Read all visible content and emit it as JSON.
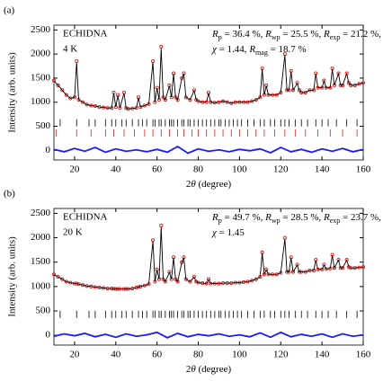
{
  "chart_data": [
    {
      "type": "line",
      "panel_label": "(a)",
      "labels": [
        "ECHIDNA",
        "4 K"
      ],
      "annotation": [
        [
          {
            "text": "R",
            "style": "italic"
          },
          {
            "text": "p",
            "style": "sub"
          },
          {
            "text": " = 36.4 %, "
          },
          {
            "text": "R",
            "style": "italic"
          },
          {
            "text": "wp",
            "style": "sub"
          },
          {
            "text": " = 25.5 %, "
          },
          {
            "text": "R",
            "style": "italic"
          },
          {
            "text": "exp",
            "style": "sub"
          },
          {
            "text": " = 21.2 %,"
          }
        ],
        [
          {
            "text": "χ",
            "style": "italic"
          },
          {
            "text": " = 1.44, "
          },
          {
            "text": "R",
            "style": "italic"
          },
          {
            "text": "mag",
            "style": "sub"
          },
          {
            "text": " = 18.7 %"
          }
        ]
      ],
      "y_label": "Intensity (arb. units)",
      "x_label": [
        {
          "text": "2"
        },
        {
          "text": "θ",
          "style": "italic"
        },
        {
          "text": " (degree)"
        }
      ],
      "xlim": [
        10,
        160
      ],
      "ylim": [
        -200,
        2600
      ],
      "xticks": [
        20,
        40,
        60,
        80,
        100,
        120,
        140,
        160
      ],
      "yticks": [
        0,
        500,
        1000,
        1500,
        2000,
        2500
      ],
      "x": [
        10,
        12,
        14,
        16,
        18,
        20,
        21,
        22,
        24,
        26,
        28,
        30,
        32,
        34,
        36,
        38,
        39,
        40,
        41,
        42,
        44,
        45,
        46,
        48,
        50,
        51,
        52,
        54,
        56,
        58,
        59,
        60,
        61,
        62,
        63,
        64,
        66,
        67,
        68,
        69,
        70,
        72,
        73,
        74,
        76,
        78,
        79,
        80,
        82,
        84,
        85,
        86,
        88,
        90,
        92,
        94,
        96,
        98,
        100,
        102,
        104,
        106,
        108,
        110,
        111,
        112,
        113,
        114,
        116,
        118,
        120,
        122,
        123,
        124,
        125,
        126,
        128,
        129,
        130,
        132,
        134,
        136,
        137,
        138,
        140,
        141,
        142,
        144,
        145,
        146,
        148,
        149,
        150,
        152,
        153,
        154,
        156,
        158,
        160
      ],
      "series": [
        {
          "style": "points",
          "color": "#d42020",
          "values": [
            1450,
            1350,
            1250,
            1150,
            1080,
            1100,
            1850,
            1050,
            1000,
            950,
            930,
            920,
            900,
            890,
            880,
            880,
            1200,
            900,
            1150,
            880,
            1200,
            880,
            860,
            870,
            880,
            1100,
            900,
            930,
            960,
            1850,
            1000,
            1300,
            1050,
            2150,
            1100,
            1050,
            1350,
            1100,
            1600,
            1100,
            1050,
            1500,
            1600,
            1100,
            1050,
            1250,
            1050,
            1020,
            1000,
            1000,
            1200,
            1000,
            990,
            1000,
            1020,
            1000,
            980,
            1000,
            1000,
            1000,
            1000,
            1020,
            1050,
            1100,
            1700,
            1150,
            1350,
            1150,
            1150,
            1150,
            1200,
            2000,
            1250,
            1250,
            1650,
            1250,
            1400,
            1250,
            1200,
            1200,
            1250,
            1250,
            1600,
            1300,
            1300,
            1450,
            1300,
            1300,
            1700,
            1350,
            1600,
            1350,
            1350,
            1600,
            1400,
            1350,
            1350,
            1380,
            1400
          ]
        },
        {
          "style": "line",
          "color": "#000000",
          "values": [
            1440,
            1350,
            1250,
            1150,
            1080,
            1100,
            1820,
            1050,
            1000,
            950,
            930,
            920,
            900,
            890,
            880,
            880,
            1190,
            900,
            1140,
            880,
            1190,
            880,
            860,
            870,
            880,
            1090,
            900,
            930,
            960,
            1830,
            1000,
            1290,
            1050,
            2120,
            1100,
            1050,
            1340,
            1100,
            1590,
            1100,
            1050,
            1490,
            1590,
            1100,
            1050,
            1240,
            1050,
            1020,
            1000,
            1000,
            1190,
            1000,
            990,
            1000,
            1020,
            1000,
            980,
            1000,
            1000,
            1000,
            1000,
            1020,
            1050,
            1100,
            1690,
            1150,
            1340,
            1150,
            1150,
            1150,
            1200,
            1980,
            1250,
            1250,
            1640,
            1250,
            1390,
            1250,
            1200,
            1200,
            1250,
            1250,
            1590,
            1300,
            1300,
            1440,
            1300,
            1300,
            1690,
            1350,
            1590,
            1350,
            1350,
            1590,
            1400,
            1350,
            1350,
            1380,
            1400
          ]
        }
      ],
      "difference": {
        "color": "#1a1aff",
        "x": [
          10,
          15,
          20,
          25,
          30,
          35,
          40,
          45,
          50,
          55,
          60,
          65,
          70,
          75,
          80,
          85,
          90,
          95,
          100,
          105,
          110,
          115,
          120,
          125,
          130,
          135,
          140,
          145,
          150,
          155,
          160
        ],
        "values": [
          20,
          -30,
          40,
          -20,
          60,
          -40,
          30,
          -20,
          10,
          -30,
          20,
          -40,
          80,
          -60,
          30,
          -20,
          10,
          -30,
          20,
          -10,
          30,
          -50,
          60,
          -30,
          20,
          -40,
          30,
          -20,
          40,
          -30,
          20
        ]
      },
      "reflection_rows": [
        {
          "y": 570,
          "color": "#000000",
          "positions": [
            13,
            21,
            27,
            30,
            35,
            38,
            40,
            43,
            45,
            48,
            51,
            53,
            55,
            58,
            59,
            61,
            62,
            64,
            66,
            67,
            68,
            70,
            72,
            73,
            75,
            76,
            78,
            80,
            82,
            84,
            86,
            88,
            90,
            91,
            93,
            95,
            97,
            99,
            101,
            104,
            107,
            110,
            112,
            115,
            117,
            120,
            122,
            124,
            127,
            130,
            133,
            137,
            140,
            143,
            147,
            152,
            157
          ]
        },
        {
          "y": 360,
          "color": "#d42020",
          "positions": [
            11,
            21,
            28,
            35,
            39,
            44,
            49,
            54,
            58,
            62,
            66,
            70,
            73,
            77,
            80,
            84,
            88,
            92,
            96,
            100,
            104,
            108,
            112,
            117,
            122,
            127,
            132,
            138,
            144,
            150,
            157
          ]
        }
      ]
    },
    {
      "type": "line",
      "panel_label": "(b)",
      "labels": [
        "ECHIDNA",
        "20 K"
      ],
      "annotation": [
        [
          {
            "text": "R",
            "style": "italic"
          },
          {
            "text": "p",
            "style": "sub"
          },
          {
            "text": " = 49.7 %, "
          },
          {
            "text": "R",
            "style": "italic"
          },
          {
            "text": "wp",
            "style": "sub"
          },
          {
            "text": " = 28.5 %, "
          },
          {
            "text": "R",
            "style": "italic"
          },
          {
            "text": "exp",
            "style": "sub"
          },
          {
            "text": " = 23.7 %,"
          }
        ],
        [
          {
            "text": "χ",
            "style": "italic"
          },
          {
            "text": " = 1.45"
          }
        ]
      ],
      "y_label": "Intensity (arb. units)",
      "x_label": [
        {
          "text": "2"
        },
        {
          "text": "θ",
          "style": "italic"
        },
        {
          "text": " (degree)"
        }
      ],
      "xlim": [
        10,
        160
      ],
      "ylim": [
        -200,
        2600
      ],
      "xticks": [
        20,
        40,
        60,
        80,
        100,
        120,
        140,
        160
      ],
      "yticks": [
        0,
        500,
        1000,
        1500,
        2000,
        2500
      ],
      "x": [
        10,
        12,
        14,
        16,
        18,
        20,
        21,
        22,
        24,
        26,
        28,
        30,
        32,
        34,
        36,
        38,
        39,
        40,
        41,
        42,
        44,
        45,
        46,
        48,
        50,
        51,
        52,
        54,
        56,
        58,
        59,
        60,
        61,
        62,
        63,
        64,
        66,
        67,
        68,
        69,
        70,
        72,
        73,
        74,
        76,
        78,
        79,
        80,
        82,
        84,
        85,
        86,
        88,
        90,
        92,
        94,
        96,
        98,
        100,
        102,
        104,
        106,
        108,
        110,
        111,
        112,
        113,
        114,
        116,
        118,
        120,
        122,
        123,
        124,
        125,
        126,
        128,
        129,
        130,
        132,
        134,
        136,
        137,
        138,
        140,
        141,
        142,
        144,
        145,
        146,
        148,
        149,
        150,
        152,
        153,
        154,
        156,
        158,
        160
      ],
      "series": [
        {
          "style": "points",
          "color": "#d42020",
          "values": [
            1250,
            1200,
            1150,
            1100,
            1080,
            1060,
            1060,
            1050,
            1030,
            1010,
            1000,
            990,
            980,
            970,
            960,
            960,
            955,
            950,
            950,
            950,
            950,
            950,
            950,
            960,
            980,
            990,
            1000,
            1020,
            1050,
            1950,
            1100,
            1350,
            1150,
            2250,
            1150,
            1100,
            1300,
            1150,
            1600,
            1150,
            1100,
            1500,
            1600,
            1150,
            1100,
            1200,
            1100,
            1080,
            1070,
            1060,
            1150,
            1060,
            1060,
            1060,
            1070,
            1070,
            1070,
            1080,
            1080,
            1090,
            1100,
            1120,
            1150,
            1200,
            1700,
            1250,
            1350,
            1250,
            1250,
            1250,
            1280,
            2000,
            1300,
            1300,
            1600,
            1300,
            1450,
            1300,
            1300,
            1300,
            1330,
            1330,
            1550,
            1350,
            1350,
            1450,
            1360,
            1370,
            1650,
            1380,
            1550,
            1380,
            1380,
            1550,
            1400,
            1380,
            1380,
            1390,
            1400
          ]
        },
        {
          "style": "line",
          "color": "#000000",
          "values": [
            1240,
            1200,
            1150,
            1100,
            1080,
            1060,
            1060,
            1050,
            1030,
            1010,
            1000,
            990,
            980,
            970,
            960,
            960,
            955,
            950,
            950,
            950,
            950,
            950,
            950,
            960,
            980,
            990,
            1000,
            1020,
            1050,
            1930,
            1100,
            1340,
            1150,
            2220,
            1150,
            1100,
            1290,
            1150,
            1590,
            1150,
            1100,
            1490,
            1590,
            1150,
            1100,
            1190,
            1100,
            1080,
            1070,
            1060,
            1140,
            1060,
            1060,
            1060,
            1070,
            1070,
            1070,
            1080,
            1080,
            1090,
            1100,
            1120,
            1150,
            1200,
            1690,
            1250,
            1340,
            1250,
            1250,
            1250,
            1280,
            1980,
            1300,
            1300,
            1590,
            1300,
            1440,
            1300,
            1300,
            1300,
            1330,
            1330,
            1540,
            1350,
            1350,
            1440,
            1360,
            1370,
            1640,
            1380,
            1540,
            1380,
            1380,
            1540,
            1400,
            1380,
            1380,
            1390,
            1400
          ]
        }
      ],
      "difference": {
        "color": "#1a1aff",
        "x": [
          10,
          15,
          20,
          25,
          30,
          35,
          40,
          45,
          50,
          55,
          60,
          65,
          70,
          75,
          80,
          85,
          90,
          95,
          100,
          105,
          110,
          115,
          120,
          125,
          130,
          135,
          140,
          145,
          150,
          155,
          160
        ],
        "values": [
          -20,
          30,
          -10,
          40,
          -30,
          20,
          -40,
          30,
          -20,
          10,
          60,
          -50,
          40,
          -30,
          20,
          -10,
          30,
          -20,
          10,
          -30,
          50,
          -40,
          60,
          -30,
          20,
          -20,
          30,
          -40,
          30,
          -20,
          10
        ]
      },
      "reflection_rows": [
        {
          "y": 430,
          "color": "#000000",
          "positions": [
            13,
            21,
            27,
            30,
            35,
            38,
            40,
            43,
            45,
            48,
            51,
            53,
            55,
            58,
            59,
            61,
            62,
            64,
            66,
            67,
            68,
            70,
            72,
            73,
            75,
            76,
            78,
            80,
            82,
            84,
            86,
            88,
            90,
            91,
            93,
            95,
            97,
            99,
            101,
            104,
            107,
            110,
            112,
            115,
            117,
            120,
            122,
            124,
            127,
            130,
            133,
            137,
            140,
            143,
            147,
            152,
            157
          ]
        }
      ]
    }
  ]
}
